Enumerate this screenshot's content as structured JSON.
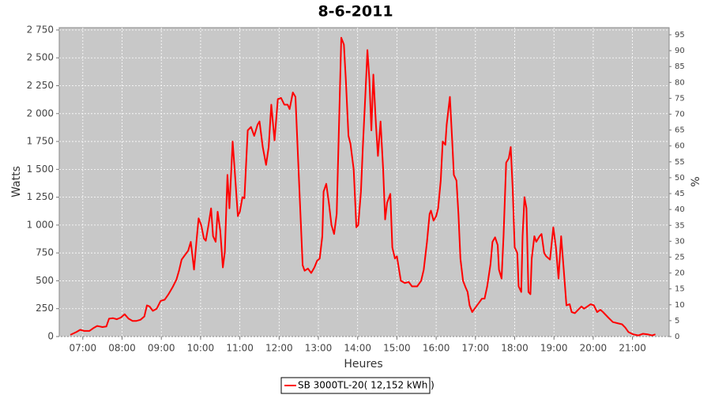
{
  "chart_data": {
    "type": "line",
    "title": "8-6-2011",
    "xlabel": "Heures",
    "ylabel": "Watts",
    "y2label": "%",
    "x": [
      401,
      410,
      416,
      422,
      430,
      436,
      442,
      450,
      456,
      460,
      466,
      472,
      478,
      484,
      490,
      496,
      502,
      508,
      514,
      518,
      522,
      527,
      533,
      539,
      545,
      551,
      557,
      563,
      567,
      571,
      576,
      581,
      585,
      588,
      590,
      594,
      597,
      601,
      605,
      608,
      612,
      616,
      619,
      623,
      626,
      630,
      634,
      637,
      641,
      644,
      649,
      652,
      657,
      660,
      664,
      667,
      672,
      677,
      682,
      687,
      690,
      695,
      700,
      704,
      708,
      713,
      718,
      723,
      728,
      733,
      736,
      741,
      745,
      748,
      756,
      759,
      764,
      769,
      774,
      778,
      782,
      786,
      788,
      792,
      796,
      800,
      804,
      808,
      812,
      815,
      819,
      822,
      826,
      829,
      834,
      838,
      841,
      845,
      848,
      852,
      855,
      858,
      861,
      864,
      868,
      871,
      875,
      879,
      882,
      885,
      890,
      893,
      897,
      900,
      906,
      912,
      918,
      923,
      931,
      937,
      941,
      946,
      950,
      952,
      956,
      960,
      963,
      967,
      970,
      974,
      976,
      981,
      985,
      987,
      991,
      994,
      997,
      1001,
      1005,
      1008,
      1011,
      1015,
      1020,
      1025,
      1030,
      1034,
      1038,
      1043,
      1046,
      1050,
      1054,
      1056,
      1060,
      1063,
      1067,
      1071,
      1074,
      1077,
      1080,
      1084,
      1086,
      1090,
      1092,
      1095,
      1098,
      1101,
      1104,
      1106,
      1110,
      1113,
      1118,
      1121,
      1125,
      1128,
      1134,
      1139,
      1143,
      1147,
      1151,
      1155,
      1159,
      1164,
      1167,
      1172,
      1177,
      1182,
      1186,
      1191,
      1196,
      1201,
      1206,
      1211,
      1215,
      1223,
      1230,
      1237,
      1244,
      1249,
      1254,
      1261,
      1269,
      1276,
      1283,
      1290,
      1295
    ],
    "series": [
      {
        "name": "SB 3000TL-20( 12,152 kWh )",
        "color": "#ff0000",
        "values": [
          15,
          40,
          60,
          50,
          50,
          75,
          95,
          85,
          90,
          160,
          165,
          155,
          170,
          200,
          160,
          140,
          140,
          150,
          180,
          280,
          270,
          230,
          250,
          320,
          330,
          380,
          440,
          510,
          590,
          690,
          730,
          770,
          850,
          700,
          600,
          870,
          1060,
          1000,
          880,
          860,
          1000,
          1150,
          900,
          850,
          1120,
          950,
          620,
          760,
          1450,
          1150,
          1750,
          1500,
          1080,
          1120,
          1250,
          1240,
          1850,
          1880,
          1800,
          1900,
          1930,
          1700,
          1540,
          1700,
          2080,
          1760,
          2130,
          2140,
          2080,
          2080,
          2040,
          2190,
          2150,
          1730,
          640,
          590,
          610,
          570,
          620,
          680,
          700,
          900,
          1300,
          1370,
          1200,
          1000,
          920,
          1100,
          2000,
          2680,
          2620,
          2300,
          1800,
          1730,
          1500,
          980,
          1000,
          1300,
          1700,
          2200,
          2570,
          2300,
          1850,
          2350,
          1900,
          1620,
          1930,
          1500,
          1050,
          1200,
          1280,
          800,
          700,
          720,
          500,
          480,
          490,
          450,
          450,
          500,
          600,
          850,
          1100,
          1130,
          1040,
          1080,
          1150,
          1400,
          1750,
          1720,
          1900,
          2150,
          1700,
          1450,
          1400,
          1100,
          700,
          500,
          440,
          400,
          280,
          220,
          260,
          300,
          340,
          340,
          450,
          650,
          850,
          890,
          820,
          600,
          520,
          900,
          1560,
          1600,
          1700,
          1320,
          800,
          750,
          450,
          400,
          900,
          1250,
          1150,
          400,
          380,
          700,
          900,
          850,
          900,
          920,
          750,
          720,
          690,
          980,
          800,
          520,
          900,
          600,
          280,
          290,
          220,
          210,
          240,
          270,
          250,
          270,
          290,
          280,
          220,
          240,
          220,
          170,
          130,
          120,
          110,
          80,
          40,
          20,
          10,
          25,
          20,
          10,
          20
        ]
      }
    ],
    "xlim": [
      384,
      1316
    ],
    "xticks": [
      {
        "value": 420,
        "label": "07:00"
      },
      {
        "value": 480,
        "label": "08:00"
      },
      {
        "value": 540,
        "label": "09:00"
      },
      {
        "value": 600,
        "label": "10:00"
      },
      {
        "value": 660,
        "label": "11:00"
      },
      {
        "value": 720,
        "label": "12:00"
      },
      {
        "value": 780,
        "label": "13:00"
      },
      {
        "value": 840,
        "label": "14:00"
      },
      {
        "value": 900,
        "label": "15:00"
      },
      {
        "value": 960,
        "label": "16:00"
      },
      {
        "value": 1020,
        "label": "17:00"
      },
      {
        "value": 1080,
        "label": "18:00"
      },
      {
        "value": 1140,
        "label": "19:00"
      },
      {
        "value": 1200,
        "label": "20:00"
      },
      {
        "value": 1260,
        "label": "21:00"
      }
    ],
    "ylim": [
      0,
      2771
    ],
    "yticks": [
      0,
      250,
      500,
      750,
      {
        "value": 1000,
        "label": "1 000"
      },
      {
        "value": 1250,
        "label": "1 250"
      },
      {
        "value": 1500,
        "label": "1 500"
      },
      {
        "value": 1750,
        "label": "1 750"
      },
      {
        "value": 2000,
        "label": "2 000"
      },
      {
        "value": 2250,
        "label": "2 250"
      },
      {
        "value": 2500,
        "label": "2 500"
      },
      {
        "value": 2750,
        "label": "2 750"
      }
    ],
    "y2lim": [
      0,
      97.24
    ],
    "y2ticks": [
      0,
      5,
      10,
      15,
      20,
      25,
      30,
      35,
      40,
      45,
      50,
      55,
      60,
      65,
      70,
      75,
      80,
      85,
      90,
      95
    ],
    "grid": true,
    "legend": "bottom"
  }
}
